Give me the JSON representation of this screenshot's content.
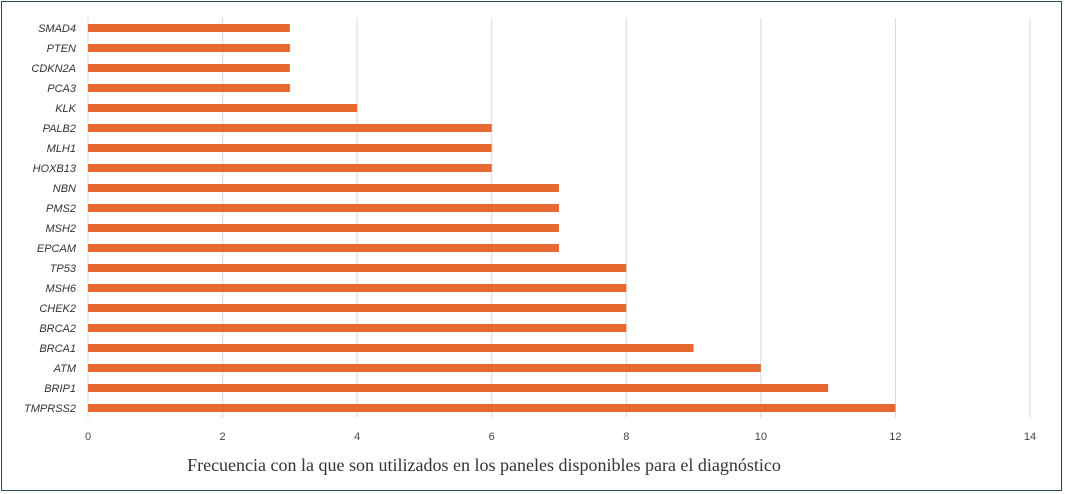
{
  "chart_data": {
    "type": "bar",
    "orientation": "horizontal",
    "categories": [
      "SMAD4",
      "PTEN",
      "CDKN2A",
      "PCA3",
      "KLK",
      "PALB2",
      "MLH1",
      "HOXB13",
      "NBN",
      "PMS2",
      "MSH2",
      "EPCAM",
      "TP53",
      "MSH6",
      "CHEK2",
      "BRCA2",
      "BRCA1",
      "ATM",
      "BRIP1",
      "TMPRSS2"
    ],
    "values": [
      3,
      3,
      3,
      3,
      4,
      6,
      6,
      6,
      7,
      7,
      7,
      7,
      8,
      8,
      8,
      8,
      9,
      10,
      11,
      12
    ],
    "xlabel": "Frecuencia con la que son utilizados en los paneles disponibles para el diagnóstico",
    "ylabel": "",
    "xlim": [
      0,
      14
    ],
    "xticks": [
      0,
      2,
      4,
      6,
      8,
      10,
      12,
      14
    ],
    "grid": "vertical",
    "bar_color": "#e8692f",
    "grid_color": "#d9d9d9",
    "frame_color": "#1f4e5a"
  }
}
